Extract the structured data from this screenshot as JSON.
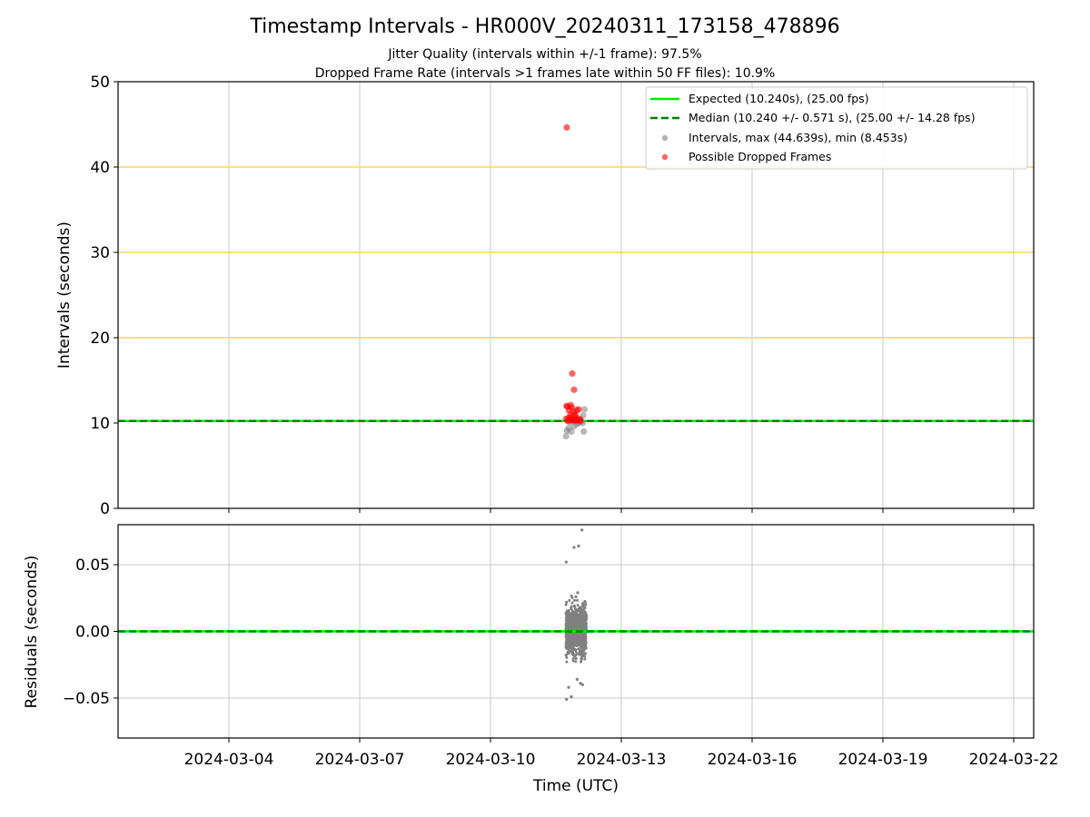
{
  "figure": {
    "title": "Timestamp Intervals - HR000V_20240311_173158_478896",
    "subtitle_1": "Jitter Quality (intervals within +/-1 frame): 97.5%",
    "subtitle_2": "Dropped Frame Rate (intervals >1 frames late within 50 FF files): 10.9%",
    "xlabel": "Time (UTC)",
    "x_ticks": [
      "2024-03-04",
      "2024-03-07",
      "2024-03-10",
      "2024-03-13",
      "2024-03-16",
      "2024-03-19",
      "2024-03-22"
    ],
    "x_range": [
      "2024-03-01T11:00",
      "2024-03-22T11:00"
    ]
  },
  "colors": {
    "expected": "#00ee00",
    "median": "#008000",
    "intervals": "#808080",
    "dropped": "#ff0000",
    "reference": "#ffd466",
    "grid": "#c8c8c8"
  },
  "chart_data": [
    {
      "type": "scatter",
      "ylabel": "Intervals (seconds)",
      "ylim": [
        0,
        50
      ],
      "y_ticks": [
        "0",
        "10",
        "20",
        "30",
        "40",
        "50"
      ],
      "grid": true,
      "legend_position": "top-right",
      "reference_lines": [
        20,
        30,
        40
      ],
      "legend": [
        "Expected (10.240s), (25.00 fps)",
        "Median (10.240 +/- 0.571 s), (25.00 +/- 14.28 fps)",
        "Intervals, max (44.639s), min (8.453s)",
        "Possible Dropped Frames"
      ],
      "series": [
        {
          "name": "Expected (10.240s), (25.00 fps)",
          "kind": "hline",
          "y": 10.24
        },
        {
          "name": "Median (10.240 +/- 0.571 s), (25.00 +/- 14.28 fps)",
          "kind": "hline-dashed",
          "y": 10.24
        },
        {
          "name": "Intervals, max (44.639s), min (8.453s)",
          "kind": "points",
          "points": [
            [
              "2024-03-11T17:35",
              8.45
            ],
            [
              "2024-03-11T18:10",
              9.1
            ],
            [
              "2024-03-11T19:00",
              9.4
            ],
            [
              "2024-03-11T20:30",
              9.0
            ],
            [
              "2024-03-11T22:00",
              9.6
            ],
            [
              "2024-03-11T23:30",
              9.9
            ],
            [
              "2024-03-12T00:30",
              10.0
            ],
            [
              "2024-03-12T01:30",
              10.4
            ],
            [
              "2024-03-12T02:40",
              10.0
            ],
            [
              "2024-03-12T03:20",
              9.0
            ],
            [
              "2024-03-12T03:40",
              11.6
            ],
            [
              "2024-03-12T03:00",
              10.9
            ],
            [
              "2024-03-11T21:00",
              10.2
            ],
            [
              "2024-03-11T19:50",
              10.1
            ],
            [
              "2024-03-12T01:00",
              10.2
            ],
            [
              "2024-03-11T23:00",
              10.3
            ],
            [
              "2024-03-12T02:10",
              10.2
            ],
            [
              "2024-03-11T18:40",
              10.2
            ]
          ]
        },
        {
          "name": "Possible Dropped Frames",
          "kind": "points",
          "points": [
            [
              "2024-03-11T18:00",
              44.639
            ],
            [
              "2024-03-11T21:00",
              15.8
            ],
            [
              "2024-03-11T22:00",
              13.9
            ],
            [
              "2024-03-11T17:50",
              12.0
            ],
            [
              "2024-03-11T18:30",
              11.9
            ],
            [
              "2024-03-11T19:10",
              11.5
            ],
            [
              "2024-03-11T20:10",
              12.1
            ],
            [
              "2024-03-11T20:50",
              11.8
            ],
            [
              "2024-03-11T21:40",
              11.3
            ],
            [
              "2024-03-11T22:30",
              11.0
            ],
            [
              "2024-03-11T23:30",
              11.5
            ],
            [
              "2024-03-12T00:30",
              11.6
            ],
            [
              "2024-03-11T17:40",
              10.5
            ],
            [
              "2024-03-11T18:20",
              10.3
            ],
            [
              "2024-03-11T19:00",
              10.6
            ],
            [
              "2024-03-11T19:40",
              10.3
            ],
            [
              "2024-03-11T20:20",
              10.7
            ],
            [
              "2024-03-11T21:00",
              10.4
            ],
            [
              "2024-03-11T21:40",
              10.3
            ],
            [
              "2024-03-11T22:20",
              10.5
            ],
            [
              "2024-03-11T23:00",
              10.3
            ],
            [
              "2024-03-11T23:40",
              10.4
            ],
            [
              "2024-03-12T00:20",
              10.3
            ],
            [
              "2024-03-12T01:00",
              10.5
            ],
            [
              "2024-03-12T01:30",
              10.3
            ],
            [
              "2024-03-11T20:00",
              11.0
            ],
            [
              "2024-03-11T22:50",
              10.8
            ]
          ]
        }
      ]
    },
    {
      "type": "scatter",
      "ylabel": "Residuals (seconds)",
      "ylim": [
        -0.08,
        0.08
      ],
      "y_ticks": [
        "−0.05",
        "0.00",
        "0.05"
      ],
      "y_tick_values": [
        -0.05,
        0.0,
        0.05
      ],
      "grid": true,
      "series": [
        {
          "name": "",
          "kind": "hline",
          "y": 0
        },
        {
          "name": "",
          "kind": "hline-dashed",
          "y": 0
        },
        {
          "name": "",
          "kind": "points",
          "time_span": [
            "2024-03-11T17:31",
            "2024-03-12T04:50"
          ],
          "core_spread": 0.025,
          "point_count": 1100,
          "outliers": [
            [
              "2024-03-11T17:40",
              0.052
            ],
            [
              "2024-03-11T22:00",
              0.063
            ],
            [
              "2024-03-12T00:30",
              0.064
            ],
            [
              "2024-03-12T02:20",
              0.076
            ],
            [
              "2024-03-12T00:00",
              0.029
            ],
            [
              "2024-03-11T23:00",
              0.026
            ],
            [
              "2024-03-11T17:50",
              -0.051
            ],
            [
              "2024-03-11T20:30",
              -0.049
            ],
            [
              "2024-03-11T19:00",
              -0.042
            ],
            [
              "2024-03-12T01:30",
              -0.039
            ],
            [
              "2024-03-11T23:40",
              -0.036
            ],
            [
              "2024-03-12T02:40",
              -0.04
            ]
          ]
        }
      ]
    }
  ]
}
